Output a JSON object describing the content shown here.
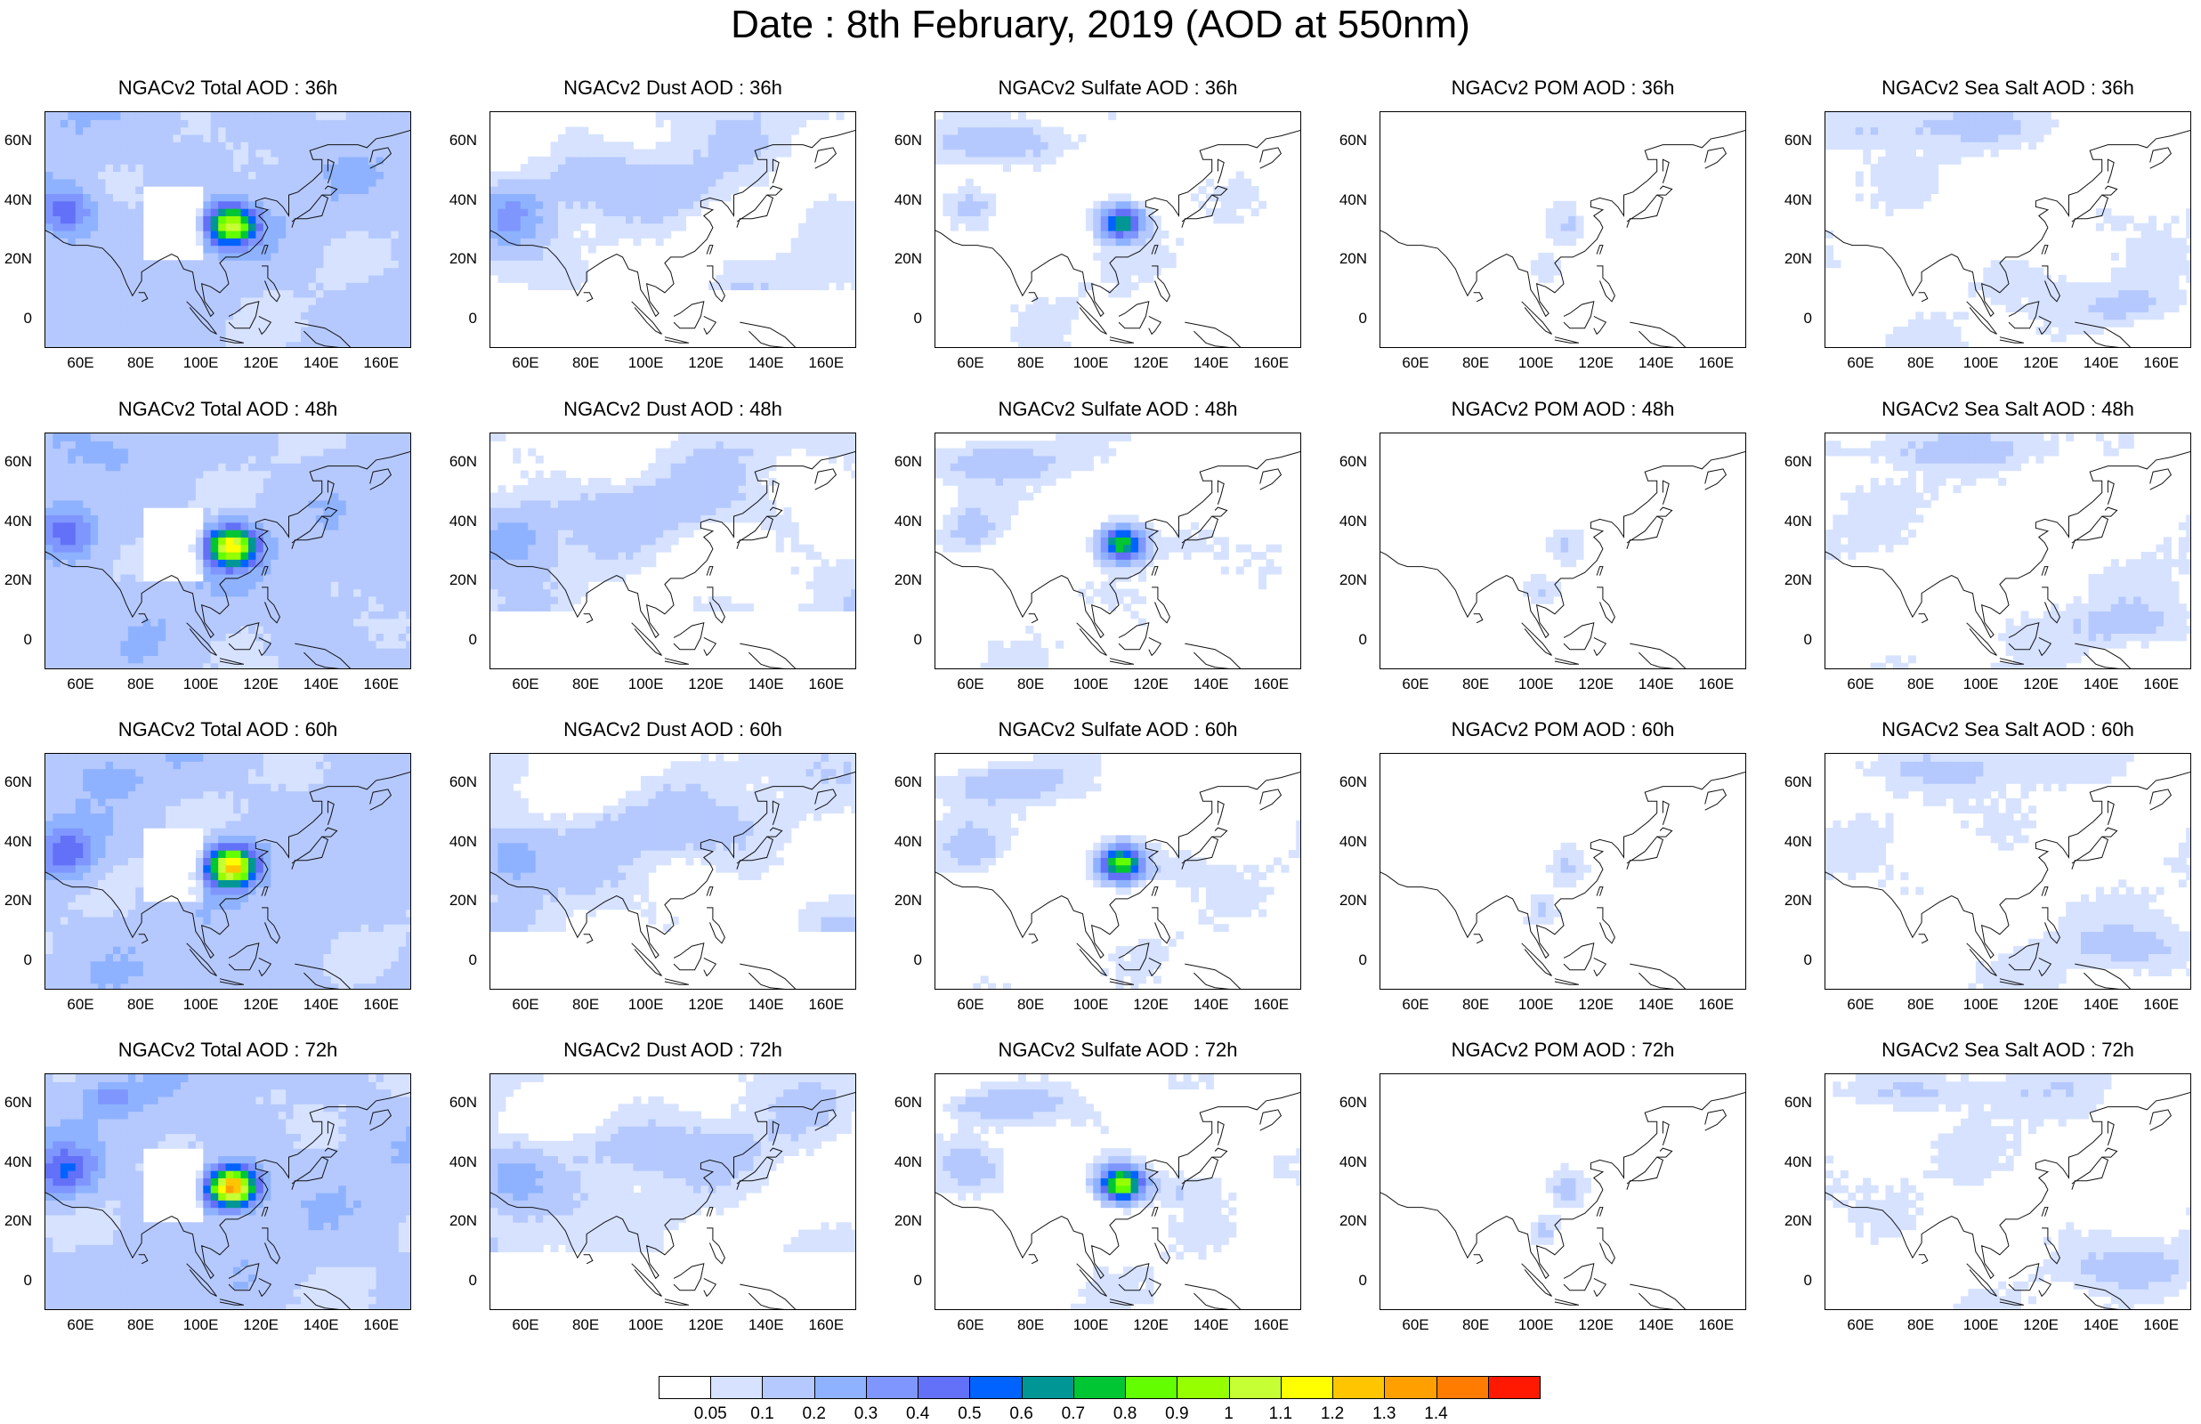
{
  "title": "Date : 8th February, 2019 (AOD at 550nm)",
  "columns": [
    "Total",
    "Dust",
    "Sulfate",
    "POM",
    "Sea Salt"
  ],
  "rows": [
    "36h",
    "48h",
    "60h",
    "72h"
  ],
  "panels": [
    {
      "title": "NGACv2 Total AOD : 36h",
      "species": "total",
      "hour": 36
    },
    {
      "title": "NGACv2 Dust AOD : 36h",
      "species": "dust",
      "hour": 36
    },
    {
      "title": "NGACv2 Sulfate AOD : 36h",
      "species": "sulfate",
      "hour": 36
    },
    {
      "title": "NGACv2 POM AOD : 36h",
      "species": "pom",
      "hour": 36
    },
    {
      "title": "NGACv2 Sea Salt AOD : 36h",
      "species": "seasalt",
      "hour": 36
    },
    {
      "title": "NGACv2 Total AOD : 48h",
      "species": "total",
      "hour": 48
    },
    {
      "title": "NGACv2 Dust AOD : 48h",
      "species": "dust",
      "hour": 48
    },
    {
      "title": "NGACv2 Sulfate AOD : 48h",
      "species": "sulfate",
      "hour": 48
    },
    {
      "title": "NGACv2 POM AOD : 48h",
      "species": "pom",
      "hour": 48
    },
    {
      "title": "NGACv2 Sea Salt AOD : 48h",
      "species": "seasalt",
      "hour": 48
    },
    {
      "title": "NGACv2 Total AOD : 60h",
      "species": "total",
      "hour": 60
    },
    {
      "title": "NGACv2 Dust AOD : 60h",
      "species": "dust",
      "hour": 60
    },
    {
      "title": "NGACv2 Sulfate AOD : 60h",
      "species": "sulfate",
      "hour": 60
    },
    {
      "title": "NGACv2 POM AOD : 60h",
      "species": "pom",
      "hour": 60
    },
    {
      "title": "NGACv2 Sea Salt AOD : 60h",
      "species": "seasalt",
      "hour": 60
    },
    {
      "title": "NGACv2 Total AOD : 72h",
      "species": "total",
      "hour": 72
    },
    {
      "title": "NGACv2 Dust AOD : 72h",
      "species": "dust",
      "hour": 72
    },
    {
      "title": "NGACv2 Sulfate AOD : 72h",
      "species": "sulfate",
      "hour": 72
    },
    {
      "title": "NGACv2 POM AOD : 72h",
      "species": "pom",
      "hour": 72
    },
    {
      "title": "NGACv2 Sea Salt  AOD : 72h",
      "species": "seasalt",
      "hour": 72
    }
  ],
  "axes": {
    "lon_range": [
      48,
      170
    ],
    "lat_range": [
      -10,
      70
    ],
    "x_ticks": [
      "60E",
      "80E",
      "100E",
      "120E",
      "140E",
      "160E"
    ],
    "x_tick_values": [
      60,
      80,
      100,
      120,
      140,
      160
    ],
    "y_ticks": [
      "60N",
      "40N",
      "20N",
      "0"
    ],
    "y_tick_values": [
      60,
      40,
      20,
      0
    ]
  },
  "colorbar": {
    "labels": [
      "0.05",
      "0.1",
      "0.2",
      "0.3",
      "0.4",
      "0.5",
      "0.6",
      "0.7",
      "0.8",
      "0.9",
      "1",
      "1.1",
      "1.2",
      "1.3",
      "1.4"
    ],
    "colors": [
      "#ffffff",
      "#d6e2ff",
      "#b5c9ff",
      "#8eb2ff",
      "#7f96ff",
      "#6370f8",
      "#0063ff",
      "#009696",
      "#00c633",
      "#63ff00",
      "#96ff00",
      "#c6ff33",
      "#ffff00",
      "#ffc600",
      "#ffa000",
      "#ff7c00",
      "#ff1900"
    ]
  }
}
